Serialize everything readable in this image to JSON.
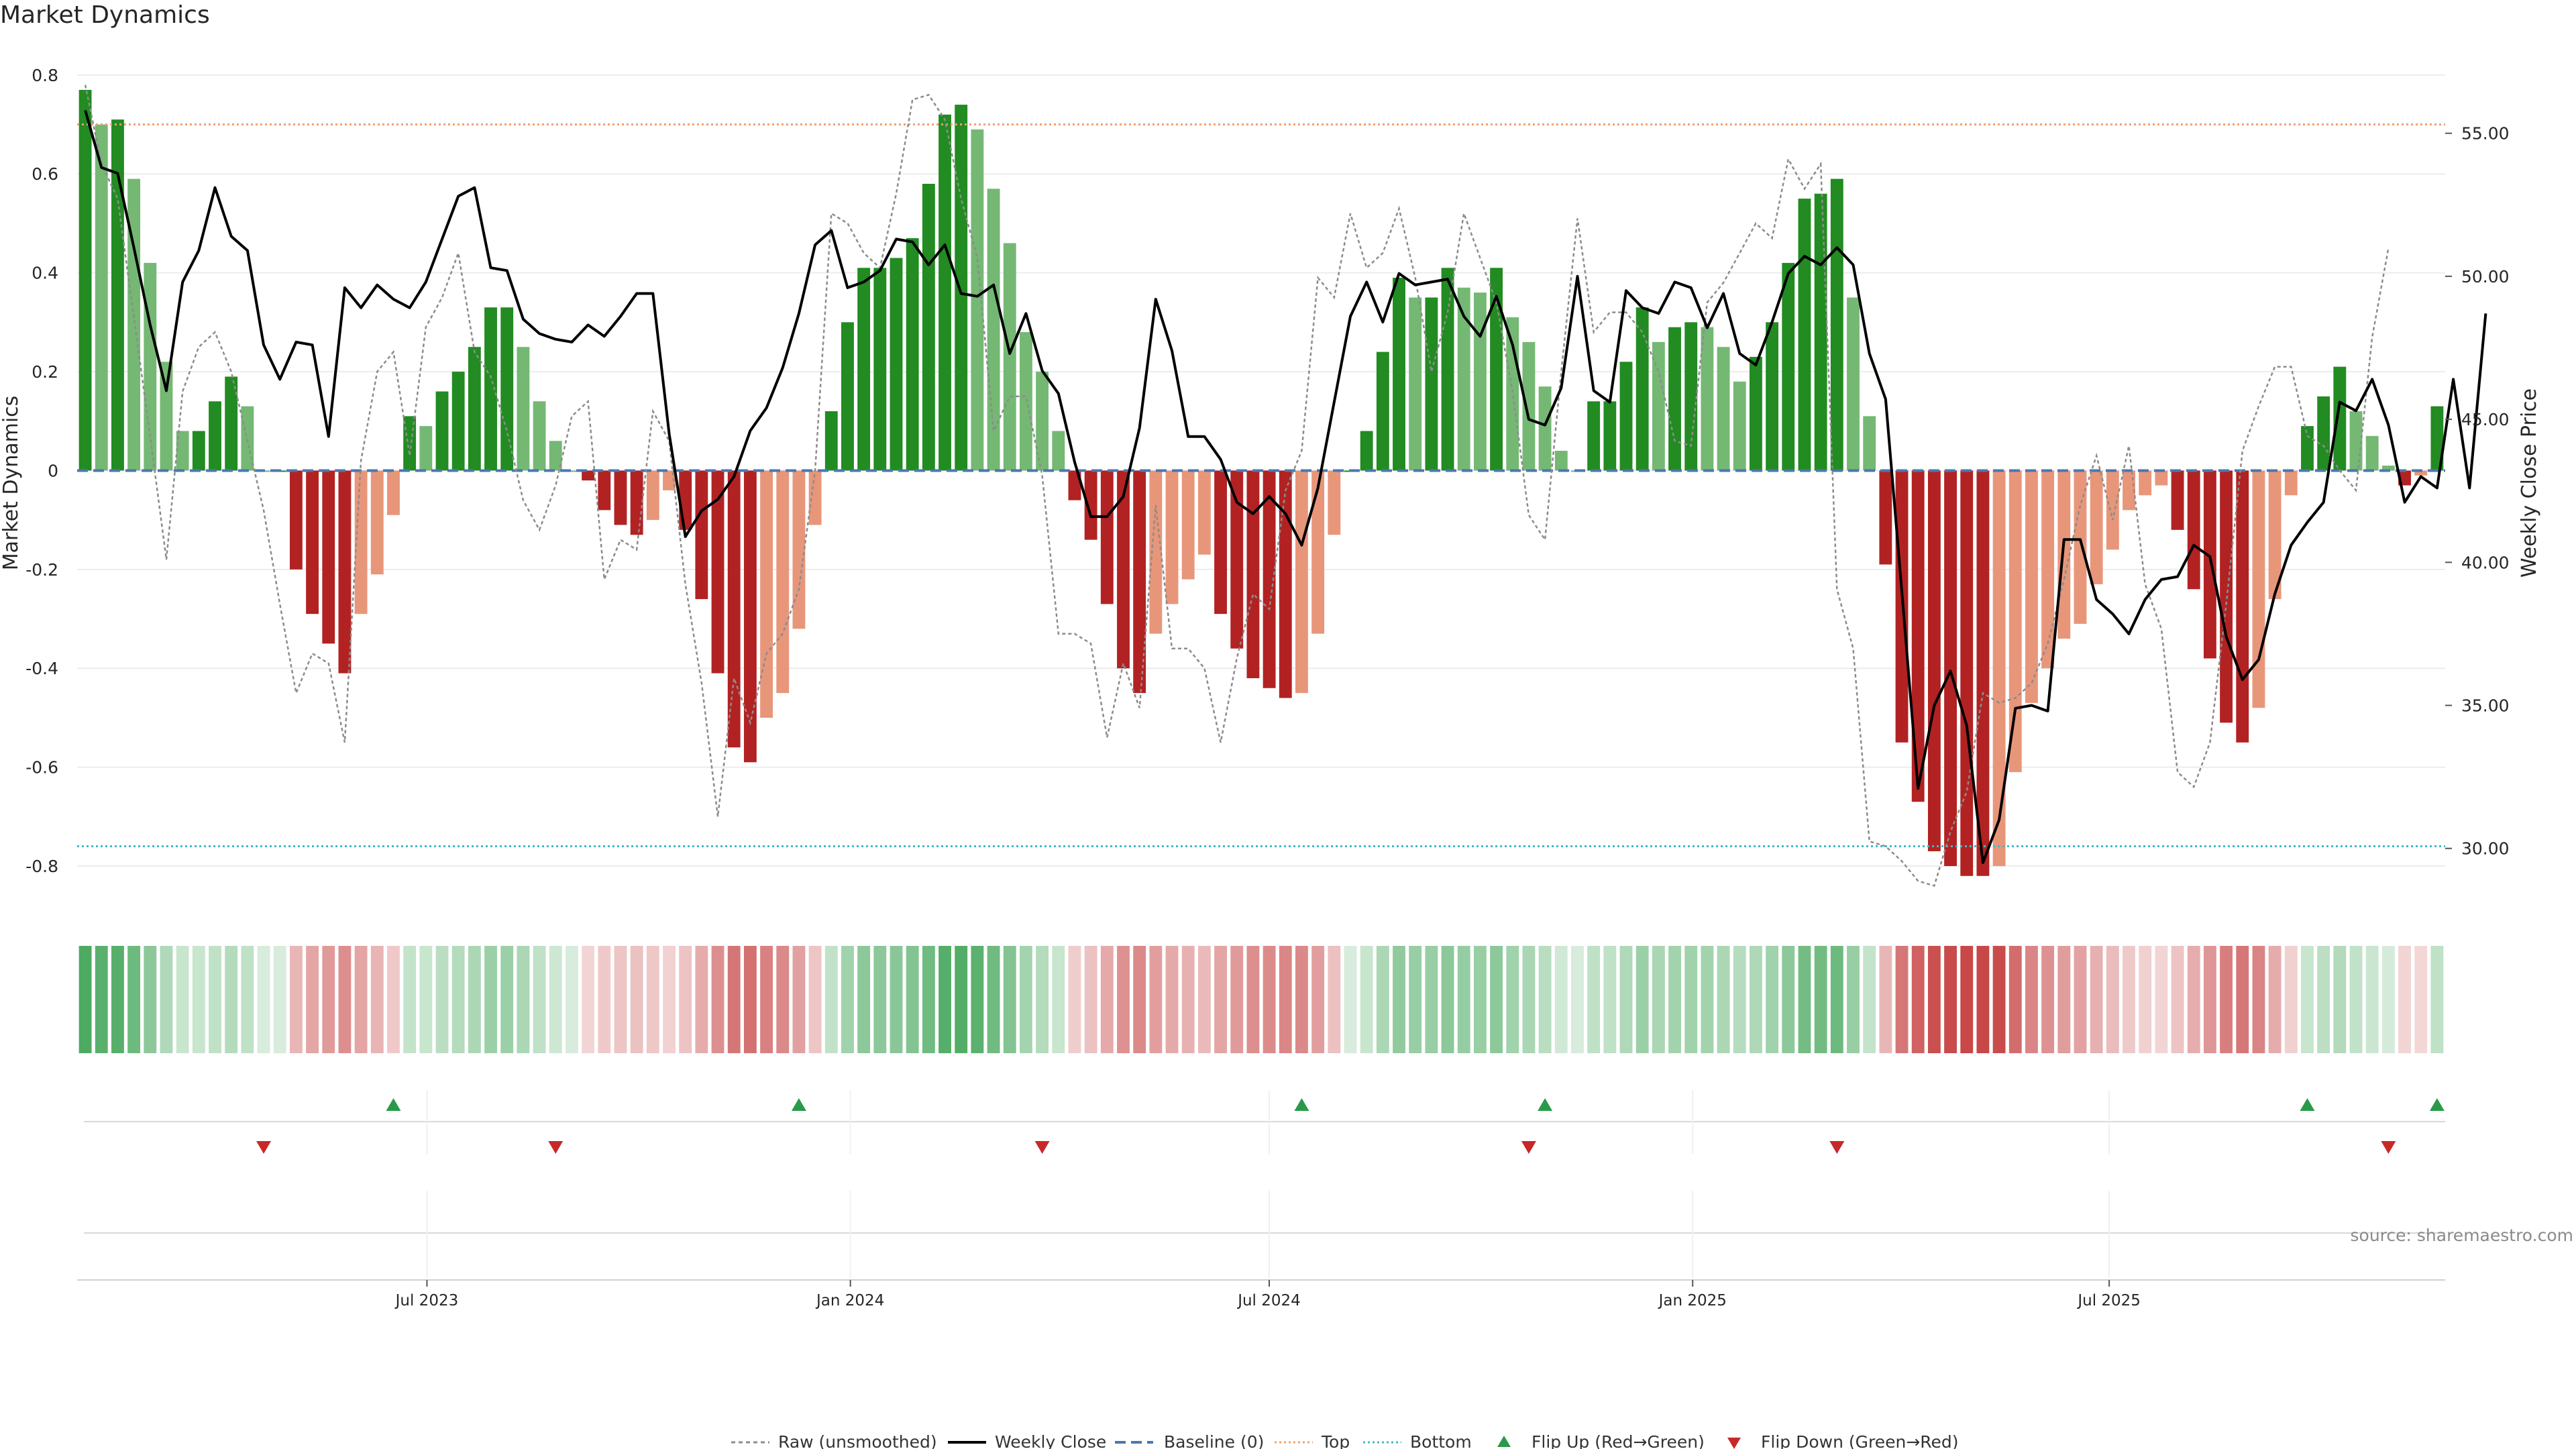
{
  "chart_data": {
    "type": "bar",
    "title": "Market Dynamics",
    "ylabel": "Market Dynamics",
    "y2label": "Weekly Close Price",
    "ylim": [
      -0.88,
      0.85
    ],
    "y2lim": [
      28.0,
      57.9
    ],
    "yticks": [
      "0.8",
      "0.6",
      "0.4",
      "0.2",
      "0",
      "-0.2",
      "-0.4",
      "-0.6",
      "-0.8"
    ],
    "y2ticks": [
      "55.00",
      "50.00",
      "45.00",
      "40.00",
      "35.00",
      "30.00"
    ],
    "x_start": "2023-01-30",
    "x_end": "2025-11-24",
    "x_ticks": [
      {
        "date": "2023-07-01",
        "label": "Jul 2023"
      },
      {
        "date": "2024-01-01",
        "label": "Jan 2024"
      },
      {
        "date": "2024-07-01",
        "label": "Jul 2024"
      },
      {
        "date": "2025-01-01",
        "label": "Jan 2025"
      },
      {
        "date": "2025-07-01",
        "label": "Jul 2025"
      }
    ],
    "top_threshold": 0.7,
    "bottom_threshold": -0.76,
    "baseline": 0,
    "dynamics": [
      0.77,
      0.7,
      0.71,
      0.59,
      0.42,
      0.22,
      0.08,
      0.08,
      0.14,
      0.19,
      0.13,
      0.0,
      0.0,
      -0.2,
      -0.29,
      -0.35,
      -0.41,
      -0.29,
      -0.21,
      -0.09,
      0.11,
      0.09,
      0.16,
      0.2,
      0.25,
      0.33,
      0.33,
      0.25,
      0.14,
      0.06,
      0.0,
      -0.02,
      -0.08,
      -0.11,
      -0.13,
      -0.1,
      -0.04,
      -0.12,
      -0.26,
      -0.41,
      -0.56,
      -0.59,
      -0.5,
      -0.45,
      -0.32,
      -0.11,
      0.12,
      0.3,
      0.41,
      0.41,
      0.43,
      0.47,
      0.58,
      0.72,
      0.74,
      0.69,
      0.57,
      0.46,
      0.28,
      0.2,
      0.08,
      -0.06,
      -0.14,
      -0.27,
      -0.4,
      -0.45,
      -0.33,
      -0.27,
      -0.22,
      -0.17,
      -0.29,
      -0.36,
      -0.42,
      -0.44,
      -0.46,
      -0.45,
      -0.33,
      -0.13,
      0.0,
      0.08,
      0.24,
      0.39,
      0.35,
      0.35,
      0.41,
      0.37,
      0.36,
      0.41,
      0.31,
      0.26,
      0.17,
      0.04,
      0.0,
      0.14,
      0.14,
      0.22,
      0.33,
      0.26,
      0.29,
      0.3,
      0.29,
      0.25,
      0.18,
      0.23,
      0.3,
      0.42,
      0.55,
      0.56,
      0.59,
      0.35,
      0.11,
      -0.19,
      -0.55,
      -0.67,
      -0.77,
      -0.8,
      -0.82,
      -0.82,
      -0.8,
      -0.61,
      -0.47,
      -0.4,
      -0.34,
      -0.31,
      -0.23,
      -0.16,
      -0.08,
      -0.05,
      -0.03,
      -0.12,
      -0.24,
      -0.38,
      -0.51,
      -0.55,
      -0.48,
      -0.26,
      -0.05,
      0.09,
      0.15,
      0.21,
      0.12,
      0.07,
      0.01,
      -0.03,
      -0.01,
      0.13
    ],
    "raw": [
      0.78,
      0.62,
      0.55,
      0.31,
      0.07,
      -0.18,
      0.16,
      0.25,
      0.28,
      0.2,
      0.06,
      -0.08,
      -0.27,
      -0.45,
      -0.37,
      -0.39,
      -0.55,
      0.02,
      0.2,
      0.24,
      0.03,
      0.29,
      0.35,
      0.44,
      0.24,
      0.19,
      0.08,
      -0.06,
      -0.12,
      -0.03,
      0.11,
      0.14,
      -0.22,
      -0.14,
      -0.16,
      0.12,
      0.06,
      -0.23,
      -0.43,
      -0.7,
      -0.42,
      -0.51,
      -0.37,
      -0.33,
      -0.24,
      0.0,
      0.52,
      0.5,
      0.44,
      0.41,
      0.56,
      0.75,
      0.76,
      0.71,
      0.55,
      0.43,
      0.08,
      0.15,
      0.15,
      -0.01,
      -0.33,
      -0.33,
      -0.35,
      -0.54,
      -0.39,
      -0.48,
      -0.07,
      -0.36,
      -0.36,
      -0.4,
      -0.55,
      -0.38,
      -0.25,
      -0.28,
      -0.04,
      0.04,
      0.39,
      0.35,
      0.52,
      0.41,
      0.44,
      0.53,
      0.39,
      0.2,
      0.32,
      0.52,
      0.43,
      0.34,
      0.16,
      -0.09,
      -0.14,
      0.2,
      0.51,
      0.28,
      0.32,
      0.32,
      0.28,
      0.2,
      0.06,
      0.05,
      0.34,
      0.38,
      0.44,
      0.5,
      0.47,
      0.63,
      0.57,
      0.62,
      -0.24,
      -0.36,
      -0.75,
      -0.76,
      -0.79,
      -0.83,
      -0.84,
      -0.73,
      -0.65,
      -0.45,
      -0.47,
      -0.46,
      -0.43,
      -0.35,
      -0.22,
      -0.07,
      0.03,
      -0.1,
      0.05,
      -0.23,
      -0.32,
      -0.61,
      -0.64,
      -0.55,
      -0.27,
      0.04,
      0.13,
      0.21,
      0.21,
      0.07,
      0.05,
      0.0,
      -0.04,
      0.27,
      0.45
    ],
    "weekly_close": [
      55.8,
      53.8,
      53.6,
      51.0,
      48.3,
      46.0,
      49.8,
      50.9,
      53.1,
      51.4,
      50.9,
      47.6,
      46.4,
      47.7,
      47.6,
      44.4,
      49.6,
      48.9,
      49.7,
      49.2,
      48.9,
      49.8,
      51.3,
      52.8,
      53.1,
      50.3,
      50.2,
      48.5,
      48.0,
      47.8,
      47.7,
      48.3,
      47.9,
      48.6,
      49.4,
      49.4,
      44.5,
      40.9,
      41.8,
      42.2,
      43.0,
      44.6,
      45.4,
      46.8,
      48.7,
      51.1,
      51.6,
      49.6,
      49.8,
      50.2,
      51.3,
      51.2,
      50.4,
      51.1,
      49.4,
      49.3,
      49.7,
      47.3,
      48.7,
      46.7,
      45.9,
      43.5,
      41.6,
      41.6,
      42.3,
      44.7,
      49.2,
      47.4,
      44.4,
      44.4,
      43.6,
      42.1,
      41.7,
      42.3,
      41.7,
      40.6,
      42.6,
      45.6,
      48.6,
      49.8,
      48.4,
      50.1,
      49.7,
      49.8,
      49.9,
      48.6,
      47.9,
      49.3,
      47.6,
      45.0,
      44.8,
      46.1,
      50.0,
      46.0,
      45.6,
      49.5,
      48.9,
      48.7,
      49.8,
      49.6,
      48.2,
      49.4,
      47.3,
      46.9,
      48.4,
      50.1,
      50.7,
      50.4,
      51.0,
      50.4,
      47.3,
      45.7,
      39.0,
      32.1,
      35.0,
      36.2,
      34.3,
      29.5,
      31.0,
      34.9,
      35.0,
      34.8,
      40.8,
      40.8,
      38.7,
      38.2,
      37.5,
      38.7,
      39.4,
      39.5,
      40.6,
      40.2,
      37.4,
      35.9,
      36.6,
      38.9,
      40.6,
      41.4,
      42.1,
      45.6,
      45.3,
      46.4,
      44.8,
      42.1,
      43.0,
      42.6,
      46.4,
      42.6,
      48.7
    ],
    "flip_up_indices": [
      19,
      44,
      75,
      90,
      137,
      145
    ],
    "flip_down_indices": [
      11,
      29,
      59,
      89,
      108,
      142
    ],
    "legend": [
      "Raw (unsmoothed)",
      "Weekly Close",
      "Baseline (0)",
      "Top",
      "Bottom",
      "Flip Up (Red→Green)",
      "Flip Down (Green→Red)"
    ],
    "grid": true,
    "legend_position": "bottom"
  },
  "source": "source: sharemaestro.com",
  "colors": {
    "strong_green": "#228b22",
    "light_green": "#74b874",
    "strong_red": "#b22222",
    "light_red": "#e8967a",
    "close_line": "#000000",
    "raw_line": "#8c8c8c",
    "baseline": "#4a78b0",
    "top_line": "#f0a070",
    "bottom_line": "#40b8c8",
    "flip_up": "#2a9a4a",
    "flip_down": "#c82828"
  }
}
